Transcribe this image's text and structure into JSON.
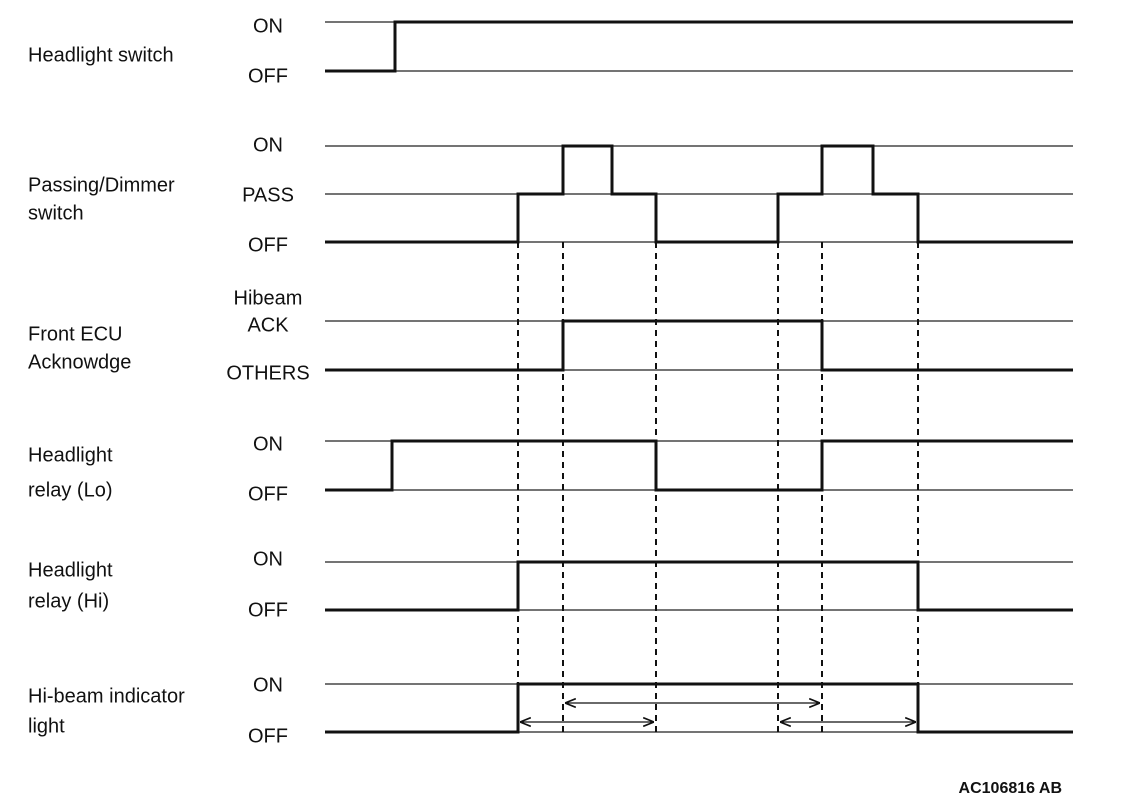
{
  "signals": [
    {
      "name_lines": [
        "Headlight switch"
      ],
      "levels": [
        [
          "ON"
        ],
        [
          "OFF"
        ]
      ]
    },
    {
      "name_lines": [
        "Passing/Dimmer",
        "switch"
      ],
      "levels": [
        [
          "ON"
        ],
        [
          "PASS"
        ],
        [
          "OFF"
        ]
      ]
    },
    {
      "name_lines": [
        "Front ECU",
        "Acknowdge"
      ],
      "levels": [
        [
          "Hibeam",
          "ACK"
        ],
        [
          "OTHERS"
        ]
      ]
    },
    {
      "name_lines": [
        "Headlight",
        "relay (Lo)"
      ],
      "levels": [
        [
          "ON"
        ],
        [
          "OFF"
        ]
      ]
    },
    {
      "name_lines": [
        "Headlight",
        "relay (Hi)"
      ],
      "levels": [
        [
          "ON"
        ],
        [
          "OFF"
        ]
      ]
    },
    {
      "name_lines": [
        "Hi-beam indicator",
        "light"
      ],
      "levels": [
        [
          "ON"
        ],
        [
          "OFF"
        ]
      ]
    }
  ],
  "figure_code": "AC106816 AB"
}
